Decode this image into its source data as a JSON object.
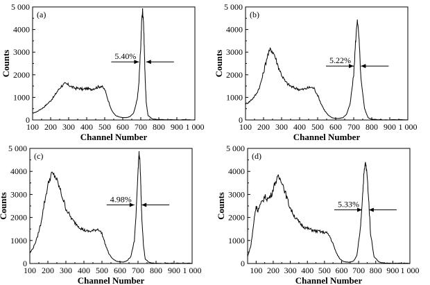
{
  "chart_data": [
    {
      "type": "line",
      "panel_label": "(a)",
      "xlabel": "Channel Number",
      "ylabel": "Counts",
      "xlim": [
        100,
        1000
      ],
      "ylim": [
        0,
        5000
      ],
      "xticks": [
        "100",
        "200",
        "300",
        "400",
        "500",
        "600",
        "700",
        "800",
        "900",
        "1 000"
      ],
      "yticks": [
        "0",
        "1000",
        "2000",
        "3000",
        "4000",
        "5 000"
      ],
      "annotation": "5.40%",
      "fwhm_range": [
        690,
        730
      ],
      "x": [
        100,
        120,
        140,
        160,
        180,
        200,
        220,
        240,
        260,
        280,
        300,
        320,
        340,
        360,
        380,
        400,
        420,
        440,
        460,
        480,
        500,
        520,
        540,
        560,
        580,
        600,
        620,
        640,
        660,
        680,
        690,
        700,
        705,
        710,
        715,
        720,
        725,
        730,
        740,
        760,
        780,
        800,
        850,
        900,
        950,
        1000
      ],
      "y": [
        300,
        350,
        450,
        550,
        700,
        850,
        1050,
        1300,
        1500,
        1600,
        1550,
        1450,
        1400,
        1400,
        1350,
        1400,
        1350,
        1400,
        1450,
        1500,
        1350,
        850,
        400,
        200,
        130,
        100,
        100,
        150,
        300,
        900,
        1700,
        3300,
        4400,
        4850,
        4400,
        3000,
        1700,
        800,
        200,
        60,
        30,
        20,
        10,
        10,
        10,
        10
      ]
    },
    {
      "type": "line",
      "panel_label": "(b)",
      "xlabel": "Channel Number",
      "ylabel": "Counts",
      "xlim": [
        100,
        1000
      ],
      "ylim": [
        0,
        5000
      ],
      "xticks": [
        "100",
        "200",
        "300",
        "400",
        "500",
        "600",
        "700",
        "800",
        "900",
        "1 000"
      ],
      "yticks": [
        "0",
        "1000",
        "2000",
        "3000",
        "4000",
        "5 000"
      ],
      "annotation": "5.22%",
      "fwhm_range": [
        700,
        740
      ],
      "x": [
        100,
        120,
        140,
        160,
        180,
        200,
        220,
        240,
        260,
        280,
        300,
        320,
        340,
        360,
        380,
        400,
        420,
        440,
        460,
        480,
        500,
        520,
        540,
        560,
        580,
        600,
        620,
        640,
        660,
        680,
        700,
        710,
        720,
        730,
        740,
        760,
        780,
        800,
        850,
        900,
        950,
        1000
      ],
      "y": [
        700,
        800,
        950,
        1150,
        1500,
        2100,
        2800,
        3150,
        2900,
        2400,
        2000,
        1700,
        1550,
        1450,
        1400,
        1350,
        1350,
        1400,
        1450,
        1400,
        1100,
        700,
        400,
        200,
        100,
        70,
        70,
        100,
        250,
        700,
        2000,
        3400,
        4500,
        3500,
        1800,
        500,
        100,
        30,
        10,
        10,
        10,
        10
      ]
    },
    {
      "type": "line",
      "panel_label": "(c)",
      "xlabel": "Channel Number",
      "ylabel": "Counts",
      "xlim": [
        100,
        1000
      ],
      "ylim": [
        0,
        5000
      ],
      "xticks": [
        "100",
        "200",
        "300",
        "400",
        "500",
        "600",
        "700",
        "800",
        "900",
        "1 000"
      ],
      "yticks": [
        "0",
        "1000",
        "2000",
        "3000",
        "4000",
        "5 000"
      ],
      "annotation": "4.98%",
      "fwhm_range": [
        680,
        720
      ],
      "x": [
        100,
        120,
        140,
        160,
        180,
        200,
        220,
        240,
        260,
        280,
        300,
        320,
        340,
        360,
        380,
        400,
        420,
        440,
        460,
        480,
        500,
        520,
        540,
        560,
        580,
        600,
        620,
        640,
        660,
        680,
        690,
        700,
        705,
        710,
        715,
        720,
        730,
        740,
        760,
        780,
        800,
        850,
        900,
        950,
        1000
      ],
      "y": [
        450,
        700,
        1100,
        1700,
        2600,
        3400,
        3900,
        3800,
        3400,
        2900,
        2400,
        2100,
        1850,
        1700,
        1550,
        1450,
        1400,
        1400,
        1450,
        1500,
        1300,
        800,
        400,
        200,
        100,
        70,
        70,
        120,
        300,
        1000,
        2200,
        4000,
        4800,
        4500,
        3500,
        2200,
        800,
        200,
        50,
        20,
        10,
        10,
        10,
        10,
        10
      ]
    },
    {
      "type": "line",
      "panel_label": "(d)",
      "xlabel": "Channel Number",
      "ylabel": "Counts",
      "xlim": [
        50,
        1000
      ],
      "ylim": [
        0,
        5000
      ],
      "xticks": [
        "100",
        "200",
        "300",
        "400",
        "500",
        "600",
        "700",
        "800",
        "900",
        "1 000"
      ],
      "yticks": [
        "0",
        "1000",
        "2000",
        "3000",
        "4000",
        "5 000"
      ],
      "annotation": "5.33%",
      "fwhm_range": [
        720,
        760
      ],
      "x": [
        50,
        70,
        90,
        100,
        110,
        130,
        150,
        170,
        190,
        210,
        230,
        250,
        270,
        290,
        310,
        330,
        350,
        370,
        390,
        410,
        430,
        450,
        470,
        490,
        510,
        530,
        550,
        570,
        590,
        610,
        630,
        650,
        670,
        690,
        710,
        720,
        730,
        740,
        750,
        760,
        770,
        790,
        820,
        850,
        900,
        950,
        1000
      ],
      "y": [
        300,
        800,
        2000,
        2500,
        2300,
        2600,
        2900,
        2800,
        3000,
        3500,
        3750,
        3600,
        3100,
        2600,
        2250,
        2000,
        1800,
        1650,
        1550,
        1500,
        1450,
        1400,
        1400,
        1350,
        1350,
        1200,
        850,
        450,
        200,
        100,
        60,
        60,
        100,
        350,
        1500,
        2600,
        3800,
        4400,
        3800,
        2600,
        1300,
        300,
        60,
        20,
        10,
        10,
        10
      ]
    }
  ]
}
